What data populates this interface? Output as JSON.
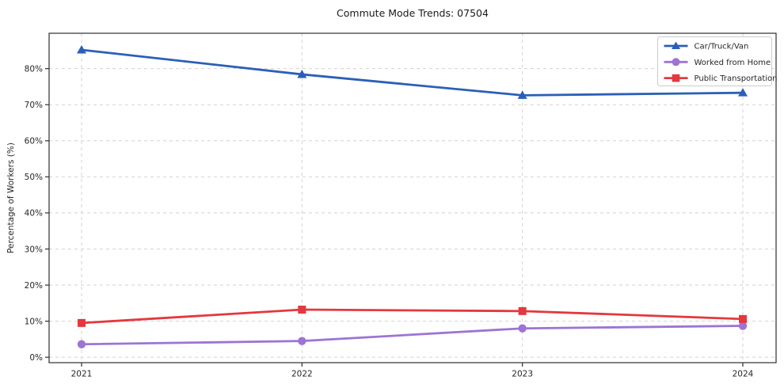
{
  "chart_data": {
    "type": "line",
    "title": "Commute Mode Trends: 07504",
    "xlabel": "",
    "ylabel": "Percentage of Workers (%)",
    "categories": [
      "2021",
      "2022",
      "2023",
      "2024"
    ],
    "series": [
      {
        "name": "Car/Truck/Van",
        "color": "#2b5fb7",
        "marker": "triangle",
        "values": [
          85.2,
          78.4,
          72.6,
          73.3
        ]
      },
      {
        "name": "Worked from Home",
        "color": "#9d74d3",
        "marker": "circle",
        "values": [
          3.6,
          4.5,
          8.0,
          8.7
        ]
      },
      {
        "name": "Public Transportation",
        "color": "#e3383e",
        "marker": "square",
        "values": [
          9.5,
          13.2,
          12.8,
          10.6
        ]
      }
    ],
    "ylim": [
      -1.5,
      89.8
    ],
    "yticks": [
      0,
      10,
      20,
      30,
      40,
      50,
      60,
      70,
      80
    ],
    "ytick_suffix": "%",
    "grid": true,
    "grid_color": "#d2d2d2",
    "spine_color": "#2e2e2e",
    "text_color": "#262626",
    "legend_position": "upper right",
    "legend_border_color": "#cccccc",
    "legend_background": "#ffffff"
  }
}
